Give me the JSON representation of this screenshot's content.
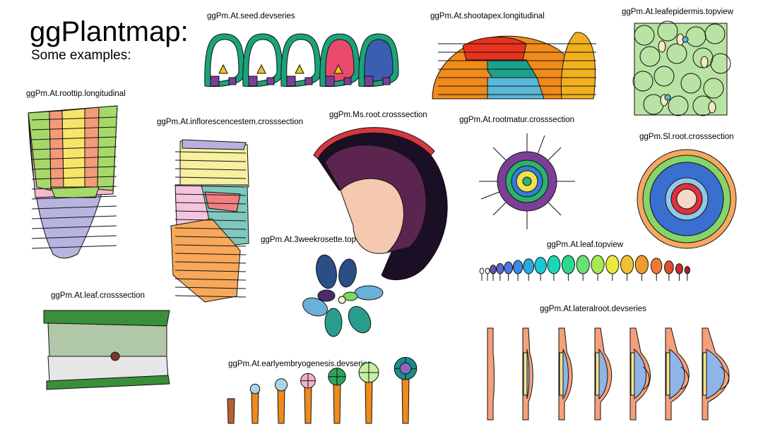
{
  "header": {
    "title": "ggPlantmap:",
    "subtitle": "Some examples:"
  },
  "labels": [
    "ggPm.At.seed.devseries",
    "ggPm.At.shootapex.longitudinal",
    "ggPm.At.leafepidermis.topview",
    "ggPm.At.roottip.longitudinal",
    "ggPm.At.inflorescencestem.crosssection",
    "ggPm.Ms.root.crosssection",
    "ggPm.At.rootmatur.crosssection",
    "ggPm.Sl.root.crosssection",
    "ggPm.At.3weekrosette.topview",
    "ggPm.At.leaf.topview",
    "ggPm.At.leaf.crosssection",
    "ggPm.At.lateralroot.devseries",
    "ggPm.At.earlyembryogenesis.devseries"
  ],
  "colors": {
    "seed_coat": "#1aa37a",
    "seed_inner": "#ffffff",
    "seed_embryo_yellow": "#f0c419",
    "seed_embryo_purple": "#7b3f98",
    "seed_endosperm_pink": "#e94a6b",
    "seed_embryo_blue": "#3a5fb0",
    "apex_orange": "#f08a1a",
    "apex_red": "#e8321e",
    "apex_teal": "#1aa38a",
    "apex_lightblue": "#5ab8d8",
    "apex_yellow": "#f2b01e",
    "epidermis_green": "#b9e3a3",
    "root_green": "#a6d96a",
    "root_yellow": "#f5e66b",
    "root_salmon": "#f49a7a",
    "root_pink": "#f6b8cc",
    "root_lavender": "#b7b4e0",
    "stem_lavender": "#b8b0e0",
    "stem_yellow": "#f7f0a0",
    "stem_pink": "#f3c6dd",
    "stem_orange": "#f7a85a",
    "stem_salmon": "#f08080",
    "stem_teal": "#7fc8c0",
    "ms_black": "#1a0f24",
    "ms_purple": "#5b2550",
    "ms_red": "#d9363e",
    "ms_peach": "#f4c9b0",
    "rm_orange": "#f0a030",
    "rm_purple": "#7b3f98",
    "rm_green": "#2db36b",
    "rm_blue": "#2f7fd8",
    "rm_yellow": "#f0e050",
    "sl_green": "#86d46a",
    "sl_blue": "#3a6fd0",
    "sl_lightblue": "#8fc8e8",
    "sl_red": "#e0303a",
    "sl_orange": "#f6a860",
    "ro_navy": "#2c4e86",
    "ro_teal": "#2a9d8f",
    "ro_lightblue": "#6ab0d8",
    "ro_purple": "#4a2c6a",
    "ro_green": "#7bd860",
    "lc_darkgreen": "#3a8f3a",
    "lc_sage": "#b0c8a8",
    "lc_lightgrey": "#e6e6e6",
    "lc_brown": "#7a3a2a",
    "lr_salmon": "#f4a07a",
    "lr_blue": "#8fb4e8",
    "lr_yellow": "#f4e28a",
    "lr_green": "#7ad07a",
    "em_brown": "#b8602e",
    "em_orange": "#f08a1a",
    "em_lightblue": "#a8d4ea",
    "em_pink": "#f0b4c8",
    "em_purple": "#8a6ac0",
    "em_green": "#2da35a",
    "em_palegreen": "#c8f0a0",
    "em_teal": "#1a8f8a"
  },
  "leaf_series_colors": [
    "#ffffff",
    "#ffffff",
    "#5a5aa8",
    "#5a6ad0",
    "#4a7ae0",
    "#3a8ae8",
    "#2aa8e0",
    "#1ac8d8",
    "#1ad8b8",
    "#2ad890",
    "#6ae070",
    "#aaea50",
    "#e8ea40",
    "#f0c030",
    "#f09a30",
    "#f07a30",
    "#e05030",
    "#c83030",
    "#a82020"
  ]
}
